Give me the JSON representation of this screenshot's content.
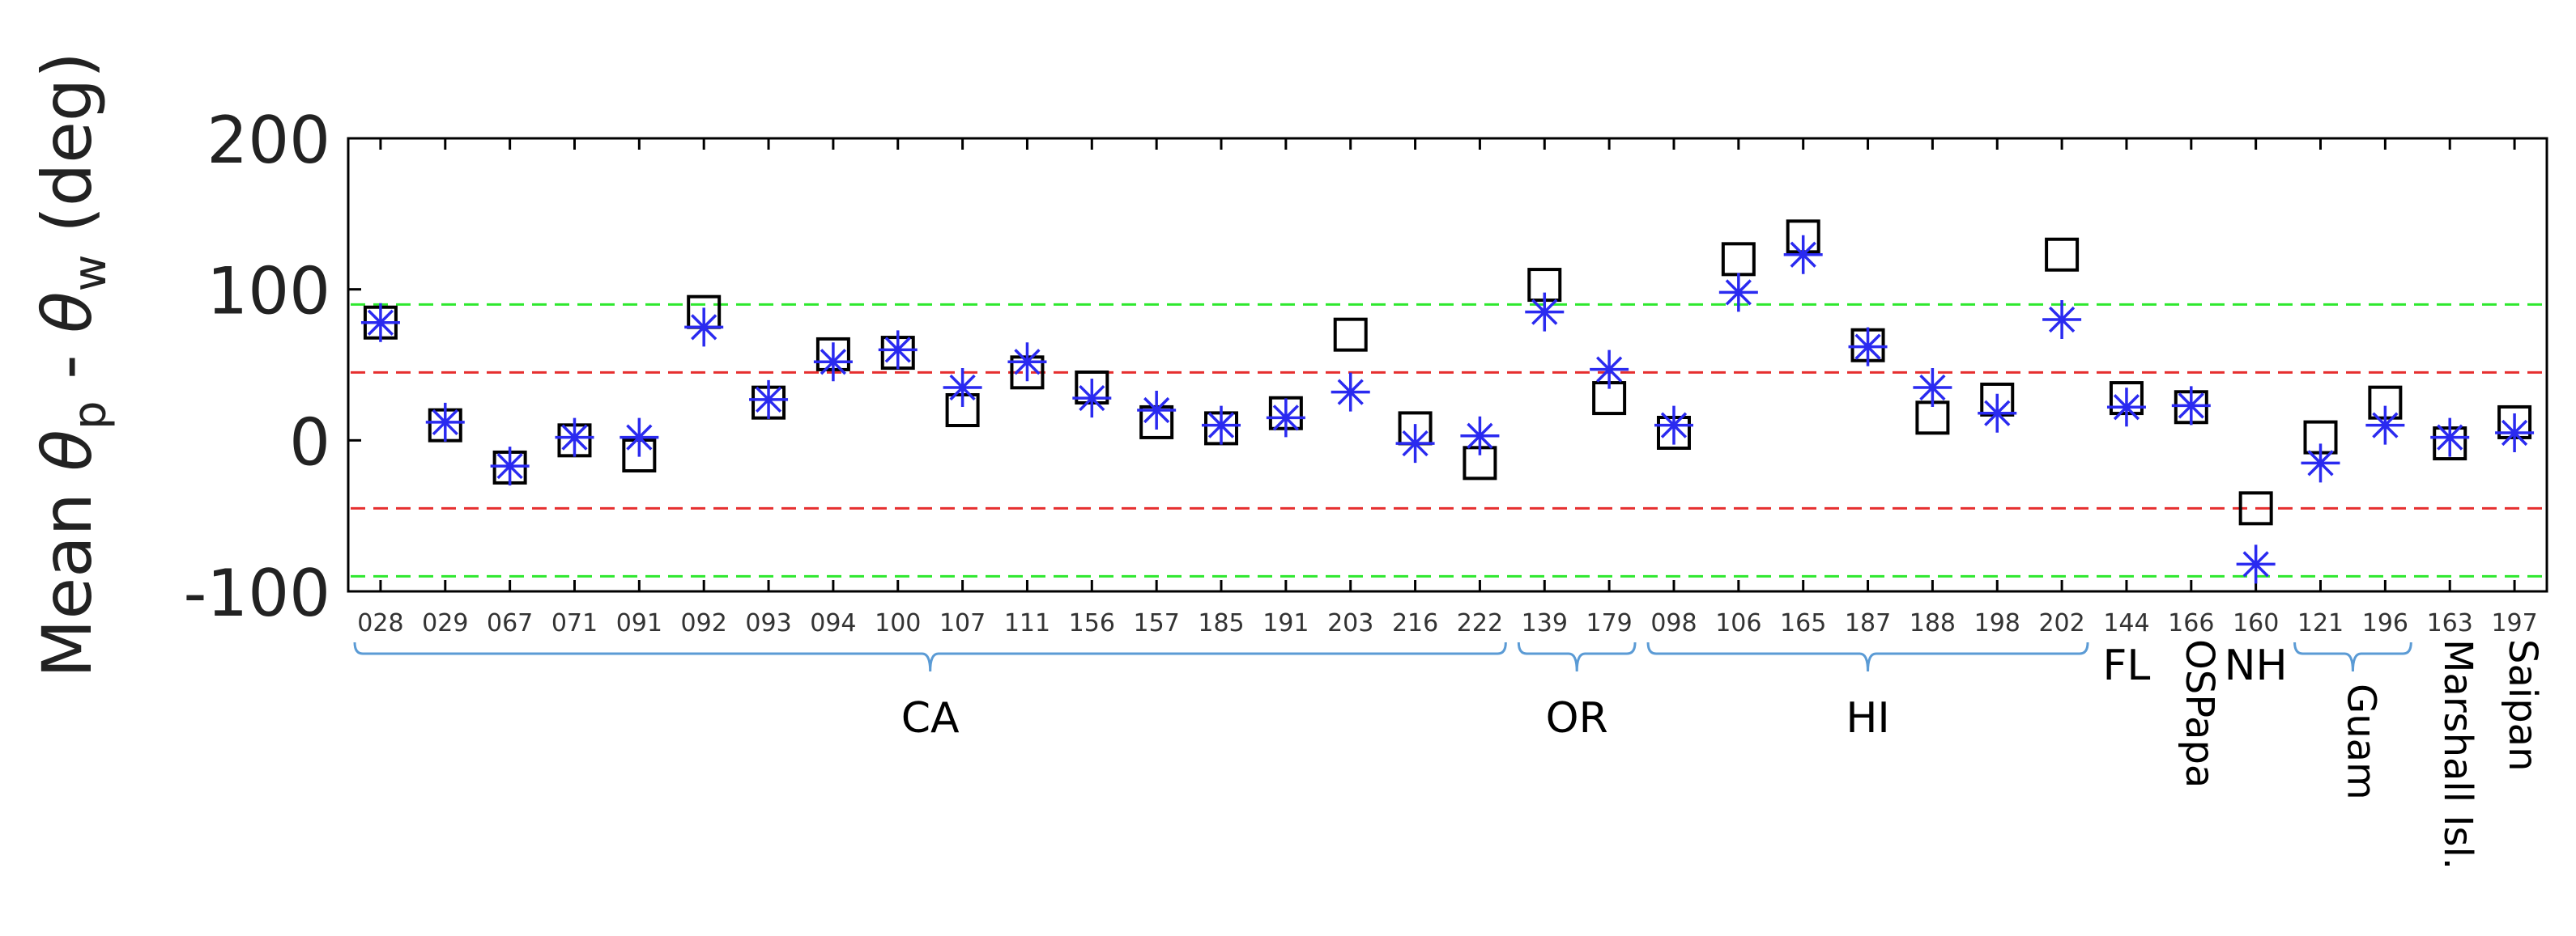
{
  "chart_data": {
    "type": "scatter",
    "title": "",
    "ylabel": {
      "prefix": "Mean ",
      "theta": "θ",
      "sub_p": "p",
      "sep": " - ",
      "sub_w": "w",
      "suffix": " (deg)"
    },
    "xlabel": "",
    "ylim": [
      -100,
      200
    ],
    "yticks": [
      -100,
      0,
      100,
      200
    ],
    "y_tick_labels": [
      "-100",
      "0",
      "100",
      "200"
    ],
    "categories": [
      "028",
      "029",
      "067",
      "071",
      "091",
      "092",
      "093",
      "094",
      "100",
      "107",
      "111",
      "156",
      "157",
      "185",
      "191",
      "203",
      "216",
      "222",
      "139",
      "179",
      "098",
      "106",
      "165",
      "187",
      "188",
      "198",
      "202",
      "144",
      "166",
      "160",
      "121",
      "196",
      "163",
      "197"
    ],
    "series": [
      {
        "marker": "square",
        "color": "#000000",
        "values": [
          78,
          10,
          -18,
          0,
          -10,
          85,
          25,
          57,
          58,
          20,
          45,
          35,
          12,
          8,
          18,
          70,
          8,
          -15,
          103,
          28,
          5,
          120,
          135,
          63,
          15,
          27,
          123,
          28,
          22,
          -45,
          2,
          25,
          -2,
          12
        ]
      },
      {
        "marker": "asterisk",
        "color": "#2a2af0",
        "values": [
          78,
          12,
          -17,
          2,
          2,
          75,
          27,
          52,
          60,
          35,
          52,
          28,
          20,
          10,
          15,
          32,
          -2,
          3,
          85,
          47,
          10,
          98,
          123,
          62,
          35,
          18,
          80,
          22,
          23,
          -82,
          -15,
          10,
          2,
          5
        ]
      }
    ],
    "reference_lines": [
      {
        "y": 90,
        "color": "#2ee82e",
        "style": "dashed"
      },
      {
        "y": 45,
        "color": "#e62e2e",
        "style": "dashed"
      },
      {
        "y": -45,
        "color": "#e62e2e",
        "style": "dashed"
      },
      {
        "y": -90,
        "color": "#2ee82e",
        "style": "dashed"
      }
    ],
    "groups": [
      {
        "label": "CA",
        "start": 0,
        "end": 17,
        "bracket": true,
        "orientation": "horizontal"
      },
      {
        "label": "OR",
        "start": 18,
        "end": 19,
        "bracket": true,
        "orientation": "horizontal"
      },
      {
        "label": "HI",
        "start": 20,
        "end": 26,
        "bracket": true,
        "orientation": "horizontal"
      },
      {
        "label": "FL",
        "start": 27,
        "end": 27,
        "bracket": false,
        "orientation": "horizontal"
      },
      {
        "label": "OSPapa",
        "start": 28,
        "end": 28,
        "bracket": false,
        "orientation": "vertical"
      },
      {
        "label": "NH",
        "start": 29,
        "end": 29,
        "bracket": false,
        "orientation": "horizontal"
      },
      {
        "label": "Guam",
        "start": 30,
        "end": 31,
        "bracket": true,
        "orientation": "vertical"
      },
      {
        "label": "Marshall Isl.",
        "start": 32,
        "end": 32,
        "bracket": false,
        "orientation": "vertical"
      },
      {
        "label": "Saipan",
        "start": 33,
        "end": 33,
        "bracket": false,
        "orientation": "vertical"
      }
    ],
    "grid": false,
    "legend": "none",
    "bracket_color": "#5b9bd5"
  }
}
